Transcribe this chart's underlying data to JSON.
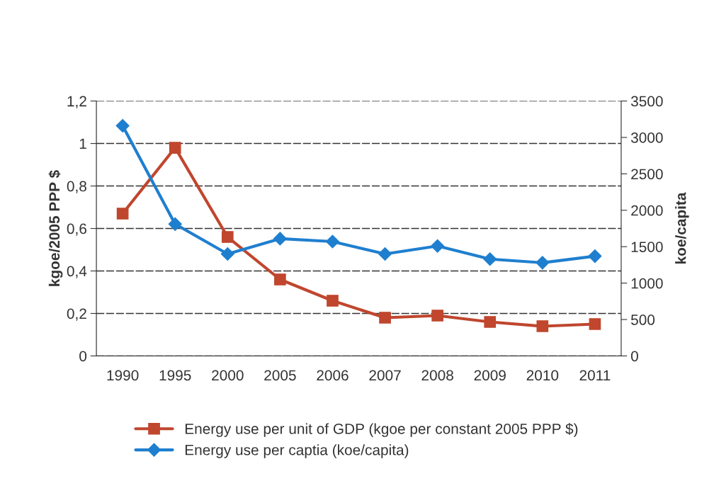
{
  "chart_data": {
    "type": "line",
    "categories": [
      "1990",
      "1995",
      "2000",
      "2005",
      "2006",
      "2007",
      "2008",
      "2009",
      "2010",
      "2011"
    ],
    "ylabel": "kgoe/2005 PPP $",
    "y2label": "koe/capita",
    "series": [
      {
        "name": "Energy use per unit of GDP (kgoe per constant 2005 PPP $)",
        "color": "#c0462e",
        "marker": "square",
        "values": [
          0.67,
          0.98,
          0.56,
          0.36,
          0.26,
          0.18,
          0.19,
          0.16,
          0.14,
          0.15
        ]
      },
      {
        "name": "Energy use per captia (koe/capita)",
        "color": "#1f7fcf",
        "marker": "diamond",
        "axis": "y2",
        "values": [
          3160,
          1810,
          1400,
          1610,
          1570,
          1400,
          1510,
          1330,
          1280,
          1370
        ]
      }
    ],
    "ylim": [
      0,
      1.2
    ],
    "yticks": [
      0,
      {
        "value": 0.2,
        "label": "0,2"
      },
      {
        "value": 0.4,
        "label": "0,4"
      },
      {
        "value": 0.6,
        "label": "0,6"
      },
      {
        "value": 0.8,
        "label": "0,8"
      },
      1,
      {
        "value": 1.2,
        "label": "1,2"
      }
    ],
    "y2lim": [
      0,
      3500
    ],
    "y2ticks": [
      0,
      500,
      1000,
      1500,
      2000,
      2500,
      3000,
      3500
    ],
    "grid": "y",
    "legend": "bottom"
  }
}
